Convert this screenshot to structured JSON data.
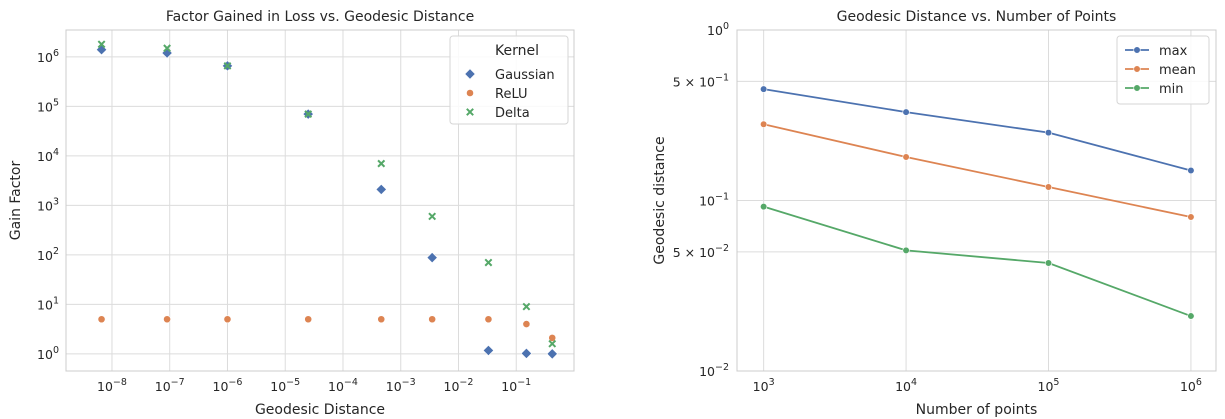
{
  "chart_data": [
    {
      "type": "scatter",
      "title": "Factor Gained in Loss vs. Geodesic Distance",
      "xlabel": "Geodesic Distance",
      "ylabel": "Gain Factor",
      "xscale": "log",
      "yscale": "log",
      "xlim": [
        1.6e-09,
        1.0
      ],
      "ylim": [
        0.45,
        3500000.0
      ],
      "grid": true,
      "legend": {
        "title": "Kernel",
        "position": "top-right"
      },
      "xticks": [
        {
          "value": 1e-08,
          "base": "10",
          "exp": "−8"
        },
        {
          "value": 1e-07,
          "base": "10",
          "exp": "−7"
        },
        {
          "value": 1e-06,
          "base": "10",
          "exp": "−6"
        },
        {
          "value": 1e-05,
          "base": "10",
          "exp": "−5"
        },
        {
          "value": 0.0001,
          "base": "10",
          "exp": "−4"
        },
        {
          "value": 0.001,
          "base": "10",
          "exp": "−3"
        },
        {
          "value": 0.01,
          "base": "10",
          "exp": "−2"
        },
        {
          "value": 0.1,
          "base": "10",
          "exp": "−1"
        }
      ],
      "yticks": [
        {
          "value": 1,
          "base": "10",
          "exp": "0"
        },
        {
          "value": 10,
          "base": "10",
          "exp": "1"
        },
        {
          "value": 100,
          "base": "10",
          "exp": "2"
        },
        {
          "value": 1000,
          "base": "10",
          "exp": "3"
        },
        {
          "value": 10000,
          "base": "10",
          "exp": "4"
        },
        {
          "value": 100000,
          "base": "10",
          "exp": "5"
        },
        {
          "value": 1000000,
          "base": "10",
          "exp": "6"
        }
      ],
      "series": [
        {
          "name": "Gaussian",
          "marker": "diamond",
          "color": "#4C72B0",
          "x": [
            6.6e-09,
            9e-08,
            1e-06,
            2.5e-05,
            0.00046,
            0.0035,
            0.033,
            0.15,
            0.42
          ],
          "y": [
            1400000.0,
            1200000.0,
            660000.0,
            70000.0,
            2100,
            88,
            1.17,
            1.02,
            1.0
          ]
        },
        {
          "name": "ReLU",
          "marker": "circle",
          "color": "#DD8452",
          "x": [
            6.6e-09,
            9e-08,
            1e-06,
            2.5e-05,
            0.00046,
            0.0035,
            0.033,
            0.15,
            0.42
          ],
          "y": [
            5.0,
            5.0,
            5.0,
            5.0,
            5.0,
            5.0,
            5.0,
            4.0,
            2.1
          ]
        },
        {
          "name": "Delta",
          "marker": "x",
          "color": "#55A868",
          "x": [
            6.6e-09,
            9e-08,
            1e-06,
            2.5e-05,
            0.00046,
            0.0035,
            0.033,
            0.15,
            0.42
          ],
          "y": [
            1800000.0,
            1500000.0,
            660000.0,
            70000.0,
            7000,
            600,
            70,
            9.0,
            1.6
          ]
        }
      ]
    },
    {
      "type": "line",
      "title": "Geodesic Distance vs. Number of Points",
      "xlabel": "Number of points",
      "ylabel": "Geodesic distance",
      "xscale": "log",
      "yscale": "log",
      "xlim": [
        650,
        1500000.0
      ],
      "ylim": [
        0.01,
        1.0
      ],
      "grid": true,
      "legend": {
        "position": "top-right"
      },
      "x": [
        1000,
        10000,
        100000,
        1000000
      ],
      "xticks": [
        {
          "value": 1000,
          "base": "10",
          "exp": "3"
        },
        {
          "value": 10000,
          "base": "10",
          "exp": "4"
        },
        {
          "value": 100000,
          "base": "10",
          "exp": "5"
        },
        {
          "value": 1000000,
          "base": "10",
          "exp": "6"
        }
      ],
      "yticks": [
        {
          "value": 0.01,
          "base": "10",
          "exp": "−2",
          "prefix": ""
        },
        {
          "value": 0.05,
          "base": "10",
          "exp": "−2",
          "prefix": "5 × "
        },
        {
          "value": 0.1,
          "base": "10",
          "exp": "−1",
          "prefix": ""
        },
        {
          "value": 0.5,
          "base": "10",
          "exp": "−1",
          "prefix": "5 × "
        },
        {
          "value": 1.0,
          "base": "10",
          "exp": "0",
          "prefix": ""
        }
      ],
      "series": [
        {
          "name": "max",
          "color": "#4C72B0",
          "values": [
            0.45,
            0.33,
            0.25,
            0.15
          ]
        },
        {
          "name": "mean",
          "color": "#DD8452",
          "values": [
            0.28,
            0.18,
            0.12,
            0.08
          ]
        },
        {
          "name": "min",
          "color": "#55A868",
          "values": [
            0.092,
            0.051,
            0.043,
            0.021
          ]
        }
      ]
    }
  ]
}
